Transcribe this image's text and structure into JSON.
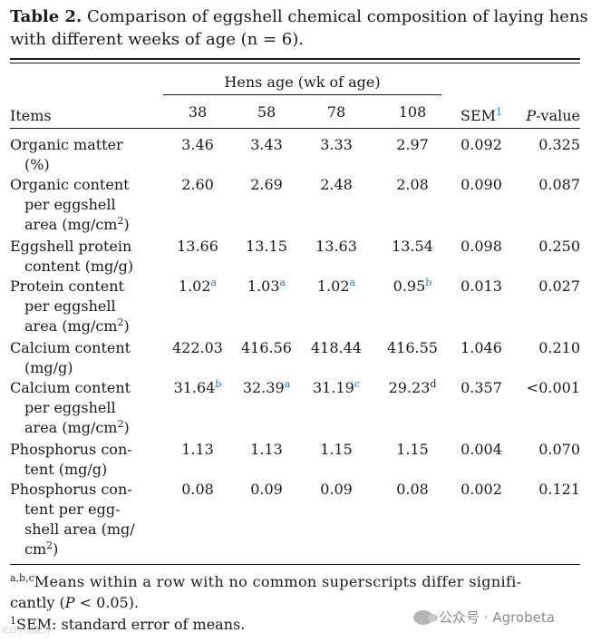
{
  "caption": {
    "label": "Table 2.",
    "text": " Comparison of eggshell chemical composition of laying hens with different weeks of age (n = 6)."
  },
  "header": {
    "group_label": "Hens age (wk of age)",
    "items_label": "Items",
    "ages": [
      "38",
      "58",
      "78",
      "108"
    ],
    "sem_label": "SEM",
    "sem_sup": "1",
    "p_label_italic": "P",
    "p_label_rest": "-value"
  },
  "rows": [
    {
      "lines": [
        "Organic matter",
        "(%)"
      ],
      "values": [
        {
          "v": "3.46",
          "s": ""
        },
        {
          "v": "3.43",
          "s": ""
        },
        {
          "v": "3.33",
          "s": ""
        },
        {
          "v": "2.97",
          "s": ""
        }
      ],
      "sem": "0.092",
      "p": "0.325"
    },
    {
      "lines": [
        "Organic content",
        "per eggshell",
        "area (mg/cm",
        "2",
        ")"
      ],
      "values": [
        {
          "v": "2.60",
          "s": ""
        },
        {
          "v": "2.69",
          "s": ""
        },
        {
          "v": "2.48",
          "s": ""
        },
        {
          "v": "2.08",
          "s": ""
        }
      ],
      "sem": "0.090",
      "p": "0.087"
    },
    {
      "lines": [
        "Eggshell protein",
        "content (mg/g)"
      ],
      "values": [
        {
          "v": "13.66",
          "s": ""
        },
        {
          "v": "13.15",
          "s": ""
        },
        {
          "v": "13.63",
          "s": ""
        },
        {
          "v": "13.54",
          "s": ""
        }
      ],
      "sem": "0.098",
      "p": "0.250"
    },
    {
      "lines": [
        "Protein content",
        "per eggshell",
        "area (mg/cm",
        "2",
        ")"
      ],
      "values": [
        {
          "v": "1.02",
          "s": "a"
        },
        {
          "v": "1.03",
          "s": "a"
        },
        {
          "v": "1.02",
          "s": "a"
        },
        {
          "v": "0.95",
          "s": "b"
        }
      ],
      "sem": "0.013",
      "p": "0.027"
    },
    {
      "lines": [
        "Calcium content",
        "(mg/g)"
      ],
      "values": [
        {
          "v": "422.03",
          "s": ""
        },
        {
          "v": "416.56",
          "s": ""
        },
        {
          "v": "418.44",
          "s": ""
        },
        {
          "v": "416.55",
          "s": ""
        }
      ],
      "sem": "1.046",
      "p": "0.210"
    },
    {
      "lines": [
        "Calcium content",
        "per eggshell",
        "area (mg/cm",
        "2",
        ")"
      ],
      "values": [
        {
          "v": "31.64",
          "s": "b"
        },
        {
          "v": "32.39",
          "s": "a"
        },
        {
          "v": "31.19",
          "s": "c"
        },
        {
          "v": "29.23",
          "s": "d"
        }
      ],
      "sem": "0.357",
      "p": "<0.001"
    },
    {
      "lines": [
        "Phosphorus con-",
        "tent (mg/g)"
      ],
      "values": [
        {
          "v": "1.13",
          "s": ""
        },
        {
          "v": "1.13",
          "s": ""
        },
        {
          "v": "1.15",
          "s": ""
        },
        {
          "v": "1.15",
          "s": ""
        }
      ],
      "sem": "0.004",
      "p": "0.070"
    },
    {
      "lines": [
        "Phosphorus con-",
        "tent per egg-",
        "shell area (mg/",
        "cm",
        "2",
        ")"
      ],
      "values": [
        {
          "v": "0.08",
          "s": ""
        },
        {
          "v": "0.09",
          "s": ""
        },
        {
          "v": "0.09",
          "s": ""
        },
        {
          "v": "0.08",
          "s": ""
        }
      ],
      "sem": "0.002",
      "p": "0.121"
    }
  ],
  "footnotes": {
    "f1_sup": "a,b,c",
    "f1_text": "Means within a row with no common superscripts differ signifi-",
    "f1_text2_pre": "cantly (",
    "f1_text2_p": "P",
    "f1_text2_post": " < 0.05).",
    "f2_sup": "1",
    "f2_text": "SEM: standard error of means."
  },
  "watermark": {
    "text": "公众号 · Agrobeta",
    "icon": "wechat-icon",
    "corner": "iCG 八语配件"
  },
  "colors": {
    "superscript": "#2a7ab8",
    "text": "#1a1a1a",
    "watermark": "#8a8a8a"
  }
}
